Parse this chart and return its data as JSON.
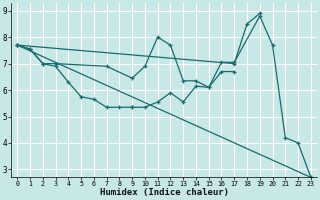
{
  "xlabel": "Humidex (Indice chaleur)",
  "bg_color": "#c8e8e8",
  "grid_color": "#ffffff",
  "line_color": "#1a6b6b",
  "xlim": [
    -0.5,
    23.5
  ],
  "ylim": [
    2.7,
    9.3
  ],
  "yticks": [
    3,
    4,
    5,
    6,
    7,
    8,
    9
  ],
  "xticks": [
    0,
    1,
    2,
    3,
    4,
    5,
    6,
    7,
    8,
    9,
    10,
    11,
    12,
    13,
    14,
    15,
    16,
    17,
    18,
    19,
    20,
    21,
    22,
    23
  ],
  "line1_x": [
    0,
    1,
    2,
    3,
    4,
    5,
    6,
    7,
    8,
    9
  ],
  "line1_y": [
    7.7,
    7.55,
    7.0,
    6.9,
    6.3,
    5.75,
    5.65,
    5.35,
    5.35,
    5.35
  ],
  "line2_x": [
    9,
    10,
    11,
    12,
    13,
    14,
    15,
    16,
    17
  ],
  "line2_y": [
    5.35,
    5.35,
    5.55,
    5.9,
    5.55,
    6.15,
    6.1,
    6.7,
    6.7
  ],
  "line3_x": [
    0,
    1,
    2,
    3,
    7,
    9,
    10,
    11,
    12,
    13,
    14,
    15,
    16,
    17,
    19,
    20,
    21,
    22,
    23
  ],
  "line3_y": [
    7.7,
    7.55,
    7.0,
    7.0,
    6.9,
    6.45,
    6.9,
    8.0,
    7.7,
    6.35,
    6.35,
    6.1,
    7.05,
    7.05,
    8.8,
    7.7,
    4.2,
    4.0,
    2.7
  ],
  "line4_x": [
    0,
    23
  ],
  "line4_y": [
    7.7,
    2.7
  ],
  "line5_x": [
    0,
    17,
    18,
    19
  ],
  "line5_y": [
    7.7,
    7.0,
    8.5,
    8.9
  ]
}
